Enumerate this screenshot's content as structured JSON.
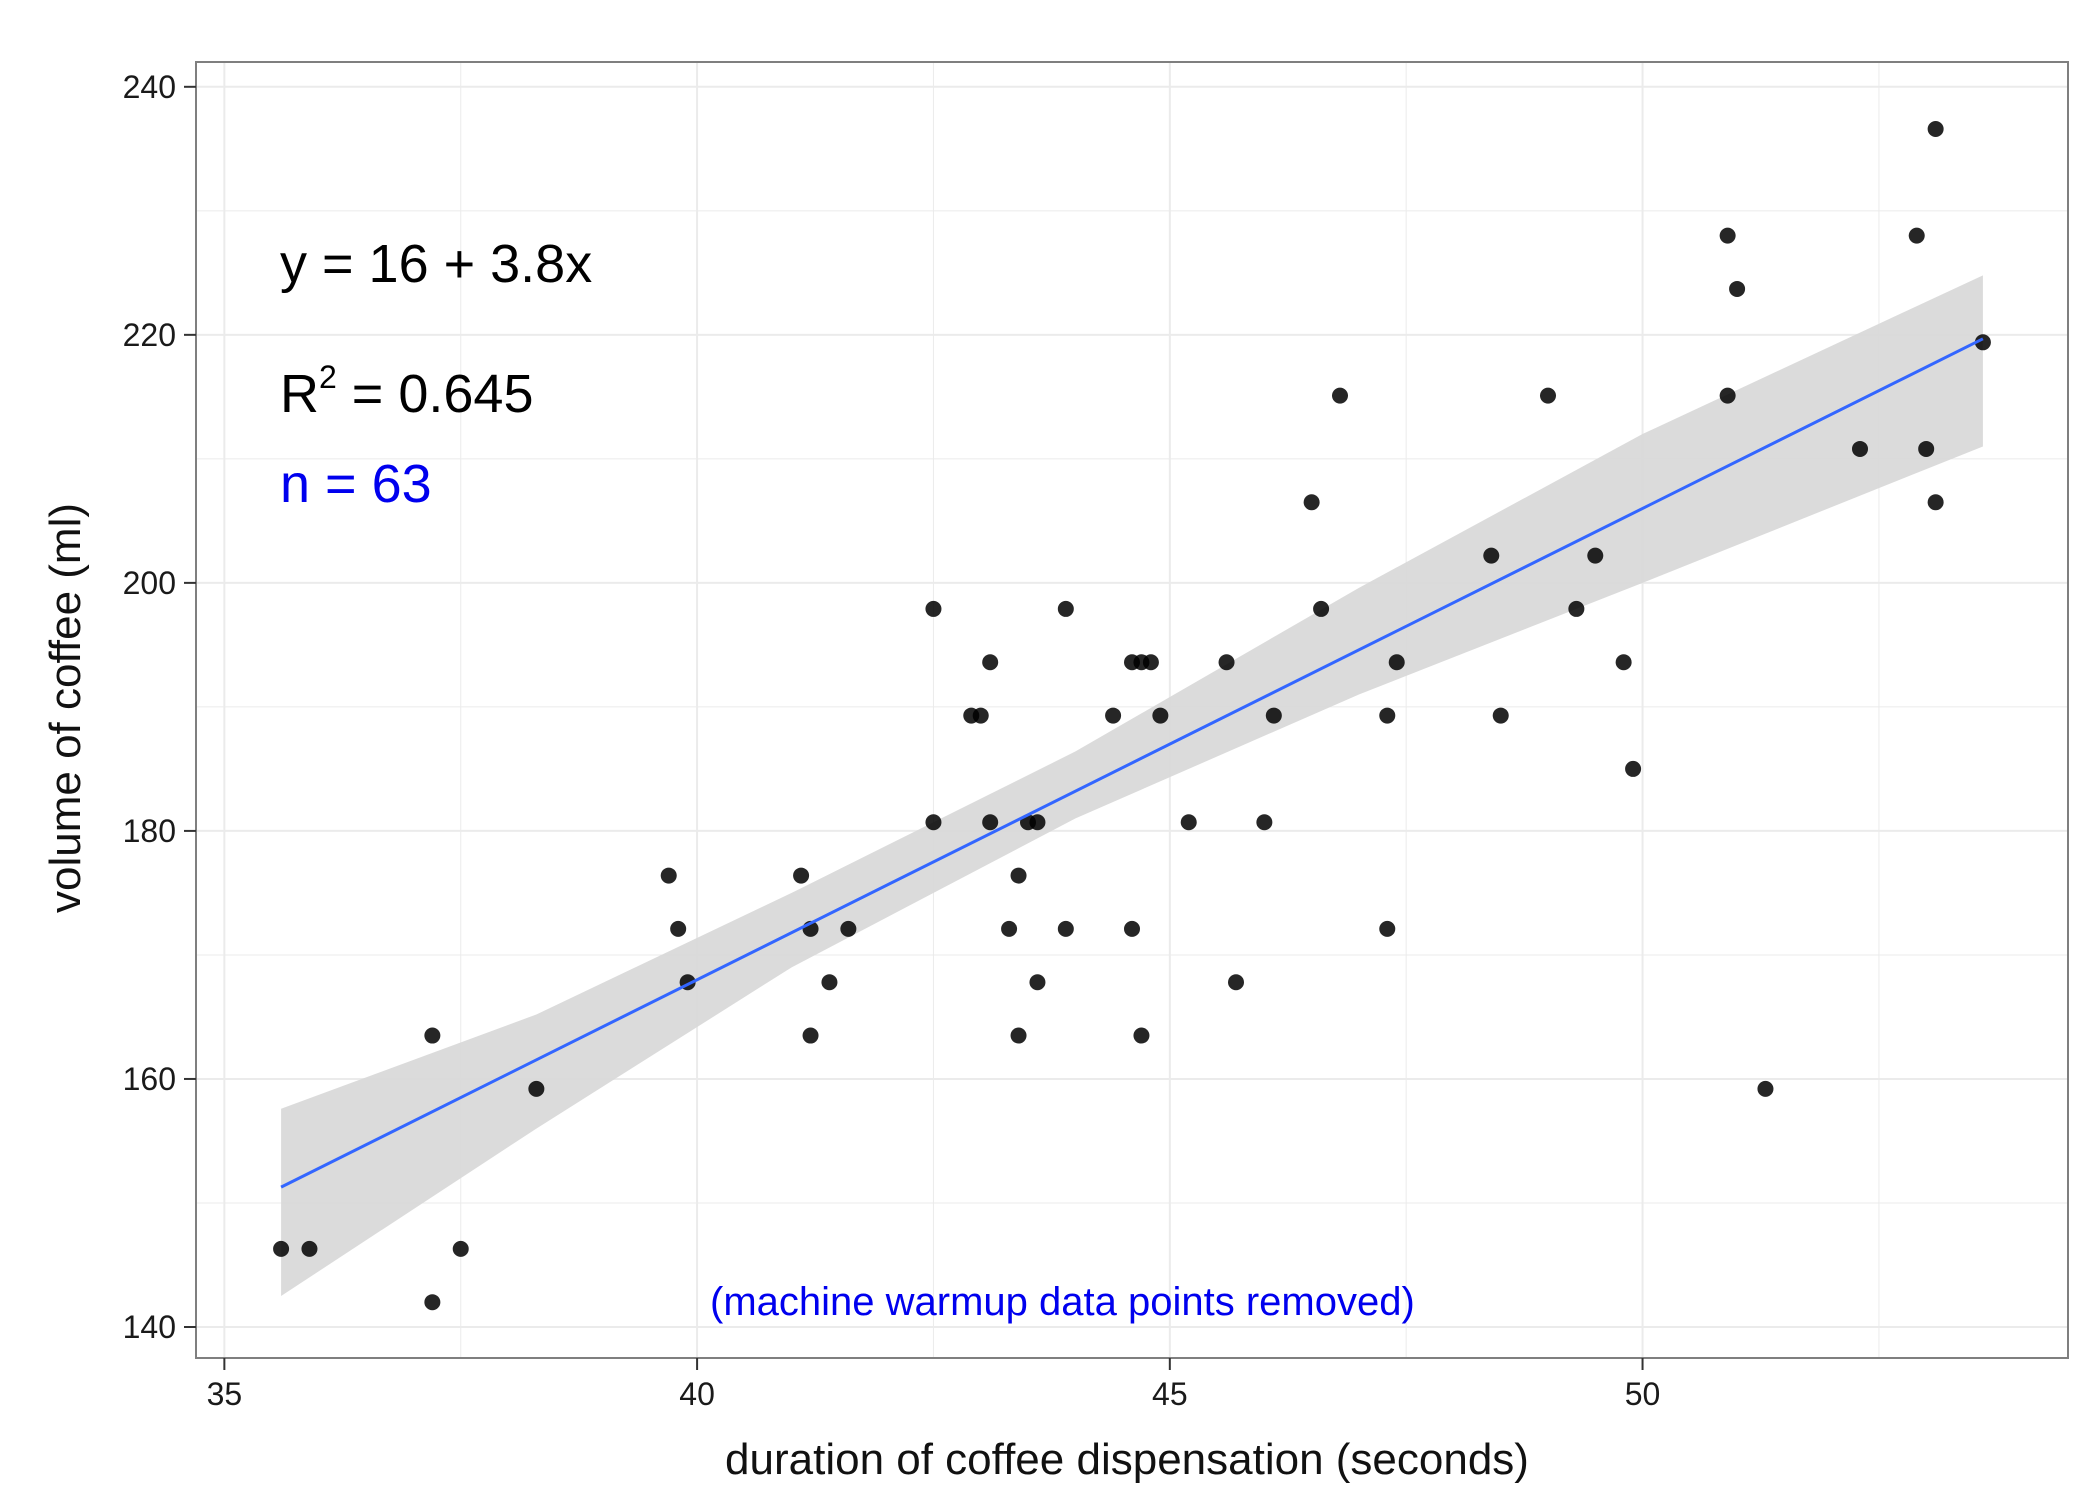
{
  "chart_data": {
    "type": "scatter",
    "xlabel": "duration of coffee dispensation (seconds)",
    "ylabel": "volume of coffee (ml)",
    "xlim": [
      34.7,
      54.5
    ],
    "ylim": [
      137.5,
      242
    ],
    "x_ticks": [
      35,
      40,
      45,
      50
    ],
    "y_ticks": [
      140,
      160,
      180,
      200,
      220,
      240
    ],
    "grid": true,
    "background": "#ffffff",
    "grid_color": "#ebebeb",
    "border_color": "#7f7f7f",
    "points": [
      {
        "x": 35.6,
        "y": 146.3
      },
      {
        "x": 35.9,
        "y": 146.3
      },
      {
        "x": 37.2,
        "y": 163.5
      },
      {
        "x": 37.2,
        "y": 142.0
      },
      {
        "x": 37.5,
        "y": 146.3
      },
      {
        "x": 38.3,
        "y": 159.2
      },
      {
        "x": 39.7,
        "y": 176.4
      },
      {
        "x": 39.8,
        "y": 172.1
      },
      {
        "x": 39.9,
        "y": 167.8
      },
      {
        "x": 41.1,
        "y": 176.4
      },
      {
        "x": 41.2,
        "y": 172.1
      },
      {
        "x": 41.2,
        "y": 163.5
      },
      {
        "x": 41.4,
        "y": 167.8
      },
      {
        "x": 41.6,
        "y": 172.1
      },
      {
        "x": 42.5,
        "y": 180.7
      },
      {
        "x": 42.5,
        "y": 197.9
      },
      {
        "x": 42.9,
        "y": 189.3
      },
      {
        "x": 43.0,
        "y": 189.3
      },
      {
        "x": 43.1,
        "y": 193.6
      },
      {
        "x": 43.1,
        "y": 180.7
      },
      {
        "x": 43.3,
        "y": 172.1
      },
      {
        "x": 43.4,
        "y": 176.4
      },
      {
        "x": 43.4,
        "y": 163.5
      },
      {
        "x": 43.5,
        "y": 180.7
      },
      {
        "x": 43.6,
        "y": 180.7
      },
      {
        "x": 43.6,
        "y": 167.8
      },
      {
        "x": 43.9,
        "y": 197.9
      },
      {
        "x": 43.9,
        "y": 172.1
      },
      {
        "x": 44.4,
        "y": 189.3
      },
      {
        "x": 44.6,
        "y": 193.6
      },
      {
        "x": 44.6,
        "y": 172.1
      },
      {
        "x": 44.7,
        "y": 163.5
      },
      {
        "x": 44.7,
        "y": 193.6
      },
      {
        "x": 44.8,
        "y": 193.6
      },
      {
        "x": 44.9,
        "y": 189.3
      },
      {
        "x": 45.2,
        "y": 180.7
      },
      {
        "x": 45.6,
        "y": 193.6
      },
      {
        "x": 45.7,
        "y": 167.8
      },
      {
        "x": 46.0,
        "y": 180.7
      },
      {
        "x": 46.1,
        "y": 189.3
      },
      {
        "x": 46.5,
        "y": 206.5
      },
      {
        "x": 46.6,
        "y": 197.9
      },
      {
        "x": 46.8,
        "y": 215.1
      },
      {
        "x": 47.3,
        "y": 189.3
      },
      {
        "x": 47.3,
        "y": 172.1
      },
      {
        "x": 47.4,
        "y": 193.6
      },
      {
        "x": 48.4,
        "y": 202.2
      },
      {
        "x": 48.5,
        "y": 189.3
      },
      {
        "x": 49.0,
        "y": 215.1
      },
      {
        "x": 49.3,
        "y": 197.9
      },
      {
        "x": 49.5,
        "y": 202.2
      },
      {
        "x": 49.8,
        "y": 193.6
      },
      {
        "x": 49.9,
        "y": 185.0
      },
      {
        "x": 50.9,
        "y": 215.1
      },
      {
        "x": 50.9,
        "y": 228.0
      },
      {
        "x": 51.0,
        "y": 223.7
      },
      {
        "x": 51.3,
        "y": 159.2
      },
      {
        "x": 52.3,
        "y": 210.8
      },
      {
        "x": 52.9,
        "y": 228.0
      },
      {
        "x": 53.0,
        "y": 210.8
      },
      {
        "x": 53.1,
        "y": 236.6
      },
      {
        "x": 53.1,
        "y": 206.5
      },
      {
        "x": 53.6,
        "y": 219.4
      }
    ],
    "fit": {
      "x_range": [
        35.6,
        53.6
      ],
      "line_color": "#3366ff",
      "band_color": "#d9d9d9",
      "band": [
        {
          "x": 35.6,
          "lo": 142.5,
          "hi": 157.6
        },
        {
          "x": 38.3,
          "lo": 156.0,
          "hi": 165.2
        },
        {
          "x": 41.0,
          "lo": 169.0,
          "hi": 175.0
        },
        {
          "x": 44.0,
          "lo": 181.0,
          "hi": 186.4
        },
        {
          "x": 47.0,
          "lo": 191.0,
          "hi": 199.6
        },
        {
          "x": 50.0,
          "lo": 200.0,
          "hi": 212.0
        },
        {
          "x": 53.6,
          "lo": 211.0,
          "hi": 224.8
        }
      ],
      "intercept": 16.0,
      "slope": 3.8,
      "r2": 0.645,
      "n": 63
    },
    "annotations": {
      "equation": "y = 16 + 3.8x",
      "r2_prefix": "R",
      "r2_sup": "2",
      "r2_value": " = 0.645",
      "n_text": "n = 63",
      "n_color": "#0000ee",
      "note": "(machine warmup data points removed)",
      "note_color": "#0000ee"
    }
  }
}
